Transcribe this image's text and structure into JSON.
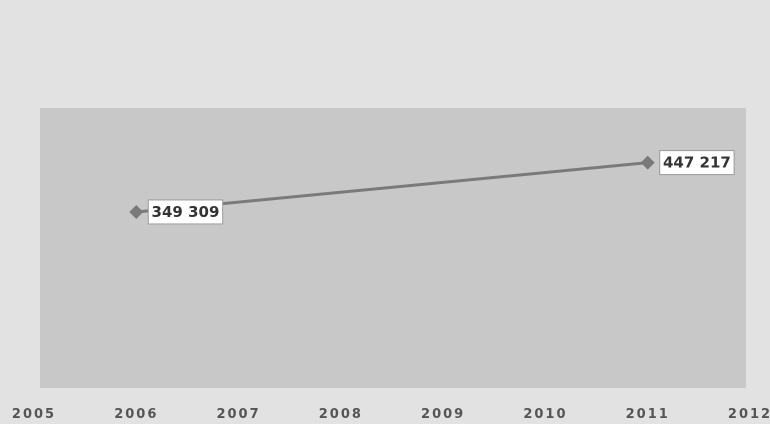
{
  "chart_data": {
    "type": "line",
    "title": "",
    "xlabel": "",
    "ylabel": "",
    "x": [
      2006,
      2011
    ],
    "series": [
      {
        "values": [
          349309,
          447217
        ],
        "labels": [
          "349 309",
          "447 217"
        ]
      }
    ],
    "x_ticks": [
      "2005",
      "2006",
      "2007",
      "2008",
      "2009",
      "2010",
      "2011",
      "2012"
    ],
    "xlim": [
      2005,
      2012
    ],
    "ylim": [
      0,
      500000
    ],
    "grid": false,
    "legend": "none",
    "colors": {
      "background": "#e2e2e2",
      "plot_area": "#c8c8c8",
      "line": "#7a7a7a",
      "marker": "#7a7a7a",
      "label_box": "#ffffff"
    }
  }
}
